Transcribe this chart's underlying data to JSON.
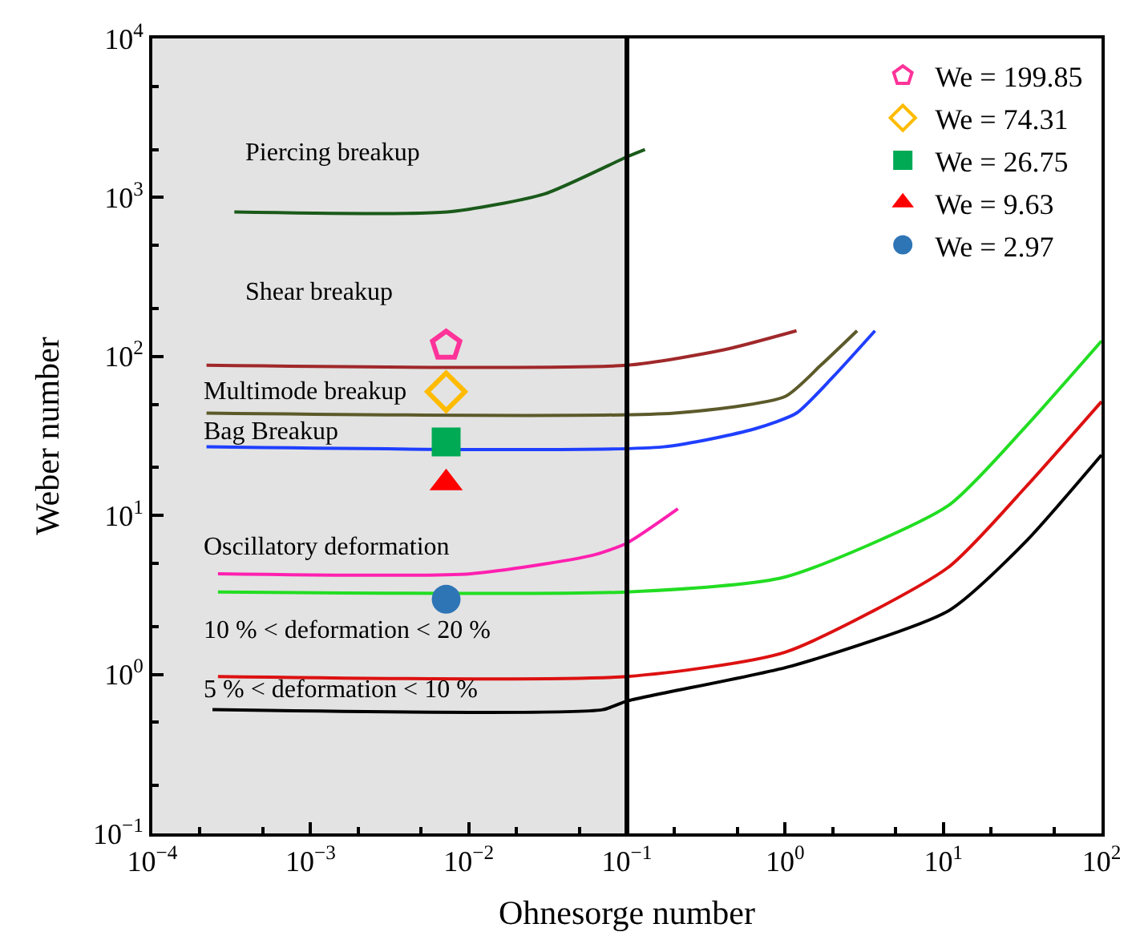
{
  "chart_data": {
    "type": "line",
    "xlabel": "Ohnesorge number",
    "ylabel": "Weber number",
    "log": "xy",
    "legend": "top right",
    "xlim": [
      0.0001,
      100
    ],
    "ylim": [
      0.1,
      10000
    ],
    "xticks": [
      {
        "value": 0.0001,
        "label": "10$^{−4}$"
      },
      {
        "value": 0.001,
        "label": "10$^{−3}$"
      },
      {
        "value": 0.01,
        "label": "10$^{−2}$"
      },
      {
        "value": 0.1,
        "label": "10$^{−1}$"
      },
      {
        "value": 1,
        "label": "10$^{0}$"
      },
      {
        "value": 10,
        "label": "10$^{1}$"
      },
      {
        "value": 100,
        "label": "10$^{2}$"
      }
    ],
    "yticks": [
      {
        "value": 0.1,
        "label": "10$^{−1}$"
      },
      {
        "value": 1,
        "label": "10$^{0}$"
      },
      {
        "value": 10,
        "label": "10$^{1}$"
      },
      {
        "value": 100,
        "label": "10$^{2}$"
      },
      {
        "value": 1000,
        "label": "10$^{3}$"
      },
      {
        "value": 10000,
        "label": "10$^{4}$"
      }
    ],
    "bands": [
      {
        "axis": "x",
        "from": 0.0001,
        "to": 0.1,
        "color": "#e3e3e3"
      }
    ],
    "ref_lines": [
      {
        "axis": "x",
        "value": 0.1,
        "color": "#000000"
      }
    ],
    "series": [
      {
        "marker": "none",
        "color": "#1a5a1a",
        "x": [
          0.00033,
          0.0073,
          0.03,
          0.1,
          0.13
        ],
        "values": [
          810,
          810,
          1050,
          1800,
          2000
        ]
      },
      {
        "marker": "none",
        "color": "#a0282a",
        "x": [
          0.00022,
          0.1,
          0.41,
          1.18
        ],
        "values": [
          88,
          88,
          110,
          145
        ]
      },
      {
        "marker": "none",
        "color": "#5c5a2a",
        "x": [
          0.00022,
          0.2,
          1,
          1.68,
          2.85
        ],
        "values": [
          44,
          44,
          56,
          88,
          145
        ]
      },
      {
        "marker": "none",
        "color": "#1f3fff",
        "x": [
          0.00022,
          0.17,
          0.64,
          1.18,
          2.0,
          3.7
        ],
        "values": [
          27,
          27,
          35,
          44,
          74,
          145
        ]
      },
      {
        "marker": "none",
        "color": "#ff20b0",
        "x": [
          0.00026,
          0.0103,
          0.06,
          0.1,
          0.21
        ],
        "values": [
          4.3,
          4.3,
          5.6,
          6.7,
          11
        ]
      },
      {
        "marker": "none",
        "color": "#22dd22",
        "x": [
          0.00026,
          0.1,
          1,
          10.7,
          33,
          100
        ],
        "values": [
          3.3,
          3.3,
          4.1,
          11.5,
          36,
          125
        ]
      },
      {
        "marker": "none",
        "color": "#dd1111",
        "x": [
          0.00026,
          0.1,
          1,
          10.7,
          33,
          100
        ],
        "values": [
          0.97,
          0.97,
          1.38,
          4.7,
          15,
          52
        ]
      },
      {
        "marker": "none",
        "color": "#000000",
        "x": [
          0.00024,
          0.07,
          0.1,
          1.1,
          10.7,
          33,
          100
        ],
        "values": [
          0.6,
          0.6,
          0.68,
          1.13,
          2.5,
          6.8,
          24
        ]
      },
      {
        "type": "scatter",
        "name": "We = 199.85",
        "color": "#ff3399",
        "x": [
          0.0072
        ],
        "values": [
          117
        ]
      },
      {
        "type": "scatter",
        "name": "We = 74.31",
        "marker": "diamond",
        "color": "#ffbb00",
        "x": [
          0.0072
        ],
        "values": [
          60
        ]
      },
      {
        "type": "scatter",
        "name": "We = 26.75",
        "marker": "square",
        "color": "#00aa55",
        "x": [
          0.0072
        ],
        "values": [
          29
        ]
      },
      {
        "type": "scatter",
        "name": "We = 9.63",
        "marker": "triangle",
        "color": "#ff0000",
        "x": [
          0.0072
        ],
        "values": [
          16
        ]
      },
      {
        "type": "scatter",
        "name": "We = 2.97",
        "marker": "circle",
        "color": "#2e75b6",
        "x": [
          0.0072
        ],
        "values": [
          2.97
        ]
      }
    ],
    "annotations": [
      "Piercing breakup",
      "Shear breakup",
      "Multimode breakup",
      "Bag Breakup",
      "Oscillatory deformation",
      "10 % < deformation < 20 %",
      "5 % < deformation < 10 %"
    ]
  }
}
